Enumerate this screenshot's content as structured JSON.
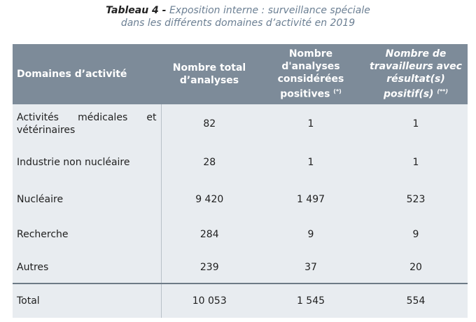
{
  "caption": {
    "lead": "Tableau 4 -",
    "line1": "Exposition interne : surveillance spéciale",
    "line2": "dans les différents domaines d’activité en 2019"
  },
  "table": {
    "headers": [
      {
        "text": "Domaines d’activité"
      },
      {
        "text": "Nombre total d’analyses"
      },
      {
        "text": "Nombre d'analyses considérées positives",
        "note": "(*)"
      },
      {
        "text": "Nombre de travailleurs avec résultat(s) positif(s)",
        "note": "(**)"
      }
    ],
    "rows": [
      [
        "Activités médicales et vétérinaires",
        "82",
        "1",
        "1"
      ],
      [
        "Industrie non nucléaire",
        "28",
        "1",
        "1"
      ],
      [
        "Nucléaire",
        "9 420",
        "1 497",
        "523"
      ],
      [
        "Recherche",
        "284",
        "9",
        "9"
      ],
      [
        "Autres",
        "239",
        "37",
        "20"
      ]
    ],
    "total": [
      "Total",
      "10 053",
      "1 545",
      "554"
    ]
  }
}
